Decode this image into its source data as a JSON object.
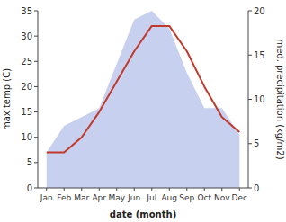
{
  "chart_data": {
    "type": "line",
    "categories": [
      "Jan",
      "Feb",
      "Mar",
      "Apr",
      "May",
      "Jun",
      "Jul",
      "Aug",
      "Sep",
      "Oct",
      "Nov",
      "Dec"
    ],
    "series": [
      {
        "type": "area",
        "axis": "y2",
        "color": "#c8d0f0",
        "values": [
          4,
          7,
          8,
          9,
          14,
          19,
          20,
          18,
          13,
          9,
          9,
          6
        ]
      },
      {
        "type": "line",
        "color": "#c0392b",
        "values": [
          7,
          7,
          10,
          15,
          21,
          27,
          32,
          32,
          27,
          20,
          14,
          11
        ]
      }
    ],
    "xlabel": "date (month)",
    "ylabel": "max temp (C)",
    "y2label": "med. precipitation (kg/m2)",
    "ylim": [
      0,
      35
    ],
    "yticks": [
      0,
      5,
      10,
      15,
      20,
      25,
      30,
      35
    ],
    "y2lim": [
      0,
      20
    ],
    "y2ticks": [
      0,
      5,
      10,
      15,
      20
    ],
    "grid": false
  }
}
